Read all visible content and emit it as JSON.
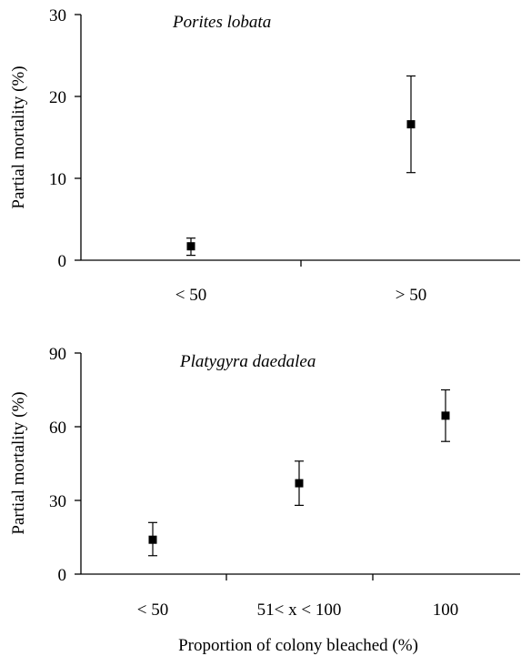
{
  "chart_data": [
    {
      "type": "scatter",
      "title": "Porites lobata",
      "xlabel": "",
      "ylabel": "Partial mortality (%)",
      "categories": [
        "< 50",
        "> 50"
      ],
      "y_ticks": [
        "0",
        "10",
        "20",
        "30"
      ],
      "ylim": [
        0,
        30
      ],
      "series": [
        {
          "values": [
            1.7,
            16.6
          ],
          "err_low": [
            0.6,
            10.7
          ],
          "err_high": [
            2.7,
            22.5
          ]
        }
      ]
    },
    {
      "type": "scatter",
      "title": "Platygyra daedalea",
      "xlabel": "Proportion of colony bleached (%)",
      "ylabel": "Partial mortality (%)",
      "categories": [
        "< 50",
        "51< x < 100",
        "100"
      ],
      "y_ticks": [
        "0",
        "30",
        "60",
        "90"
      ],
      "ylim": [
        0,
        90
      ],
      "series": [
        {
          "values": [
            14,
            37,
            64.5
          ],
          "err_low": [
            7.5,
            28,
            54
          ],
          "err_high": [
            21,
            46,
            75
          ]
        }
      ]
    }
  ]
}
